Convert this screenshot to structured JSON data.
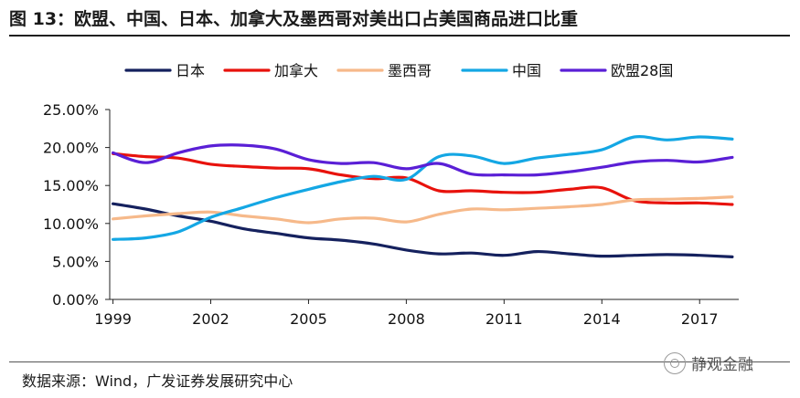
{
  "title": "图 13：欧盟、中国、日本、加拿大及墨西哥对美出口占美国商品进口比重",
  "source": "数据来源：Wind，广发证券发展研究中心",
  "watermark": "静观金融",
  "chart_data": {
    "type": "line",
    "x": [
      1999,
      2000,
      2001,
      2002,
      2003,
      2004,
      2005,
      2006,
      2007,
      2008,
      2009,
      2010,
      2011,
      2012,
      2013,
      2014,
      2015,
      2016,
      2017,
      2018
    ],
    "x_ticks": [
      "1999",
      "2002",
      "2005",
      "2008",
      "2011",
      "2014",
      "2017"
    ],
    "y_ticks": [
      "0.00%",
      "5.00%",
      "10.00%",
      "15.00%",
      "20.00%",
      "25.00%"
    ],
    "ylim": [
      0,
      25
    ],
    "legend_position": "top",
    "series": [
      {
        "name": "日本",
        "color": "#15215e",
        "values": [
          12.6,
          11.9,
          11.0,
          10.3,
          9.3,
          8.7,
          8.1,
          7.8,
          7.3,
          6.5,
          6.0,
          6.1,
          5.8,
          6.3,
          6.0,
          5.7,
          5.8,
          5.9,
          5.8,
          5.6
        ]
      },
      {
        "name": "加拿大",
        "color": "#e8120c",
        "values": [
          19.2,
          18.8,
          18.6,
          17.8,
          17.5,
          17.3,
          17.2,
          16.4,
          15.9,
          16.0,
          14.3,
          14.3,
          14.1,
          14.1,
          14.5,
          14.7,
          13.0,
          12.7,
          12.7,
          12.5
        ]
      },
      {
        "name": "墨西哥",
        "color": "#f6b98a",
        "values": [
          10.6,
          11.0,
          11.3,
          11.5,
          11.0,
          10.6,
          10.1,
          10.6,
          10.7,
          10.2,
          11.2,
          11.9,
          11.8,
          12.0,
          12.2,
          12.5,
          13.1,
          13.2,
          13.3,
          13.5
        ]
      },
      {
        "name": "中国",
        "color": "#14a7e4",
        "values": [
          7.9,
          8.1,
          8.9,
          10.8,
          12.1,
          13.4,
          14.5,
          15.5,
          16.2,
          15.8,
          18.8,
          18.9,
          17.9,
          18.6,
          19.1,
          19.7,
          21.4,
          21.0,
          21.4,
          21.1
        ]
      },
      {
        "name": "欧盟28国",
        "color": "#5a1fd6",
        "values": [
          19.3,
          18.0,
          19.3,
          20.2,
          20.3,
          19.8,
          18.4,
          17.9,
          18.0,
          17.2,
          17.9,
          16.5,
          16.4,
          16.4,
          16.8,
          17.4,
          18.1,
          18.3,
          18.1,
          18.7
        ]
      }
    ]
  }
}
